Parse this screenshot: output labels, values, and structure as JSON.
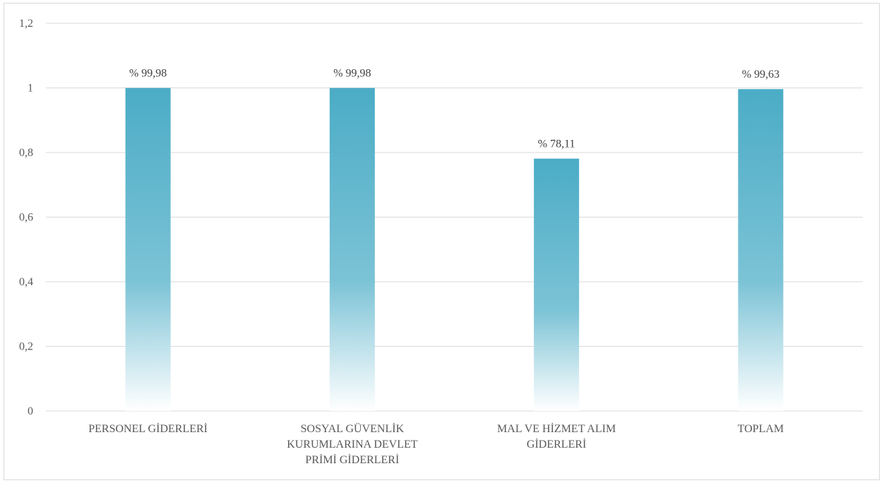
{
  "chart_data": {
    "type": "bar",
    "categories": [
      [
        "PERSONEL GİDERLERİ"
      ],
      [
        "SOSYAL GÜVENLİK",
        "KURUMLARINA DEVLET",
        "PRİMİ GİDERLERİ"
      ],
      [
        "MAL VE HİZMET ALIM",
        "GİDERLERİ"
      ],
      [
        "TOPLAM"
      ]
    ],
    "values": [
      0.9998,
      0.9998,
      0.7811,
      0.9963
    ],
    "data_labels": [
      "% 99,98",
      "% 99,98",
      "% 78,11",
      "% 99,63"
    ],
    "y_ticks": [
      "0",
      "0,2",
      "0,4",
      "0,6",
      "0,8",
      "1",
      "1,2"
    ],
    "ylim": [
      0,
      1.2
    ],
    "grid": true,
    "title": "",
    "xlabel": "",
    "ylabel": "",
    "bar_color_top": "#4bacc6",
    "bar_color_bottom": "#ffffff"
  }
}
